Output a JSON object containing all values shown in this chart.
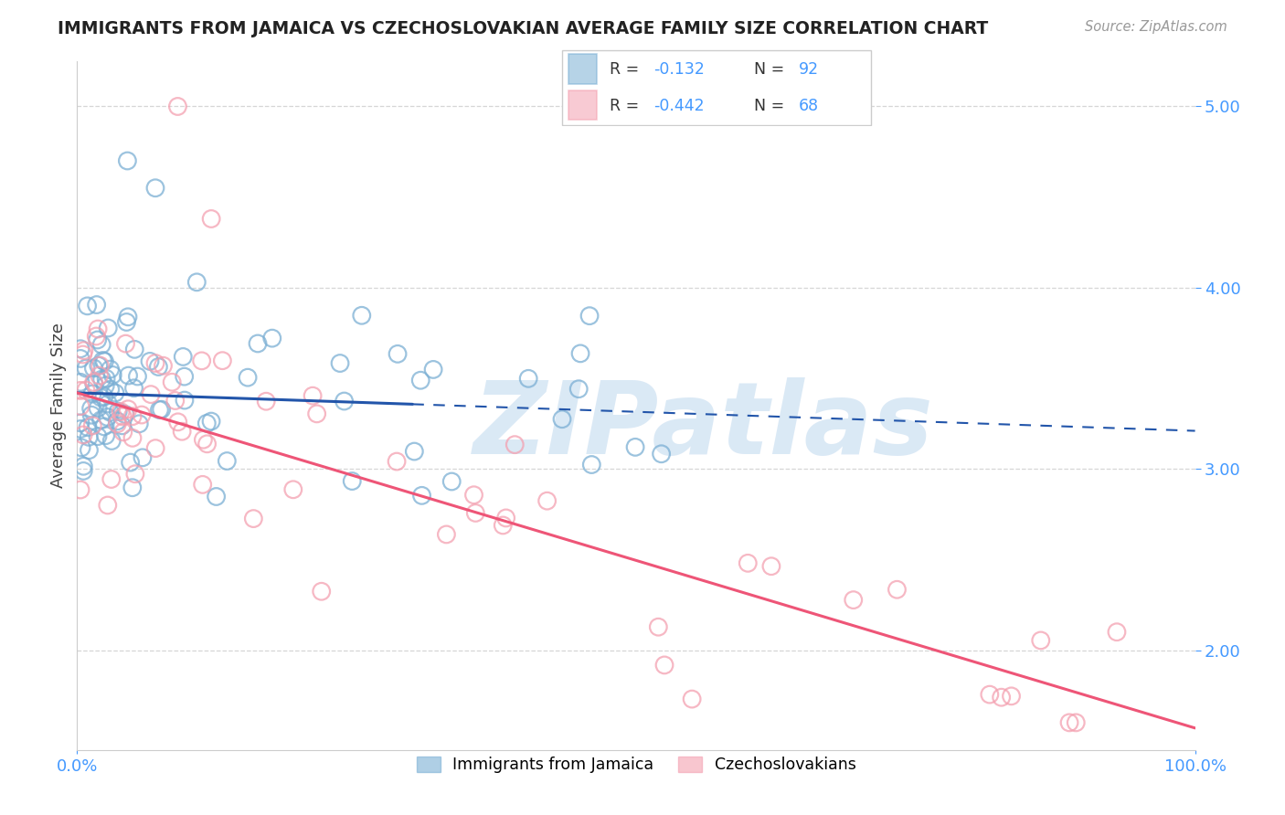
{
  "title": "IMMIGRANTS FROM JAMAICA VS CZECHOSLOVAKIAN AVERAGE FAMILY SIZE CORRELATION CHART",
  "source_text": "Source: ZipAtlas.com",
  "ylabel": "Average Family Size",
  "xlim": [
    0,
    100
  ],
  "ylim": [
    1.45,
    5.25
  ],
  "yticks": [
    2.0,
    3.0,
    4.0,
    5.0
  ],
  "xticks": [
    0,
    100
  ],
  "xticklabels": [
    "0.0%",
    "100.0%"
  ],
  "yticklabels_right": [
    "2.00",
    "3.00",
    "4.00",
    "5.00"
  ],
  "blue_color": "#7BAFD4",
  "pink_color": "#F4A0B0",
  "blue_line_color": "#2255AA",
  "pink_line_color": "#EE5577",
  "watermark": "ZIPatlas",
  "watermark_color": "#BDD7EE",
  "label1": "Immigrants from Jamaica",
  "label2": "Czechoslovakians",
  "blue_N": 92,
  "pink_N": 68,
  "blue_intercept": 3.42,
  "blue_slope": -0.0021,
  "pink_intercept": 3.42,
  "pink_slope": -0.0185,
  "blue_solid_end": 30,
  "grid_color": "#CCCCCC",
  "background_color": "#FFFFFF",
  "title_color": "#222222",
  "axis_color": "#4499FF",
  "legend_box_color": "#DDDDDD"
}
